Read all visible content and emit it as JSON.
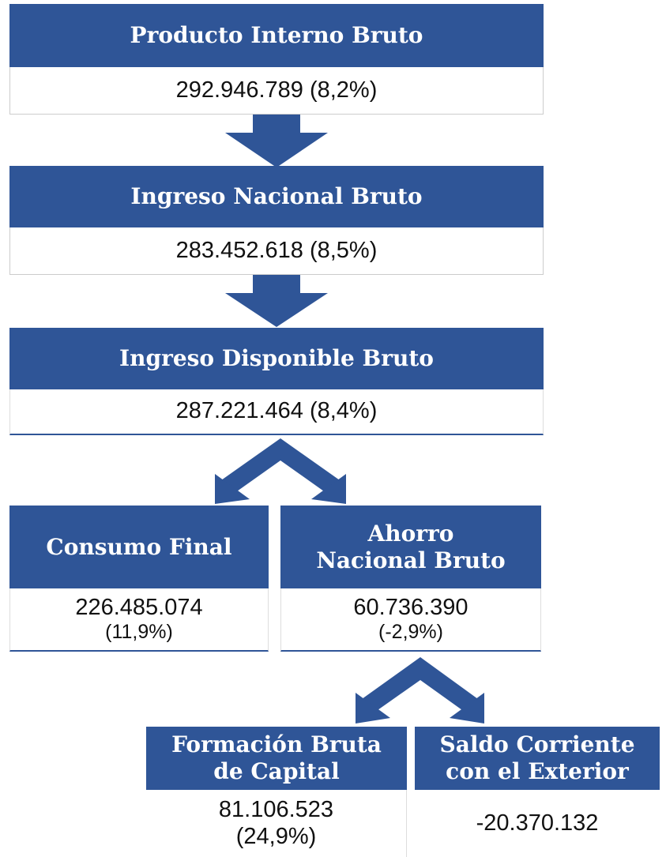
{
  "nodes": [
    {
      "title": "Producto Interno Bruto",
      "value": "292.946.789 (8,2%)"
    },
    {
      "title": "Ingreso Nacional Bruto",
      "value": "283.452.618 (8,5%)"
    },
    {
      "title": "Ingreso Disponible Bruto",
      "value": "287.221.464 (8,4%)"
    },
    {
      "title": "Consumo Final",
      "value": "226.485.074",
      "change": "(11,9%)"
    },
    {
      "title": "Ahorro Nacional Bruto",
      "value": "60.736.390",
      "change": "(-2,9%)"
    },
    {
      "title": "Formación Bruta de Capital",
      "value": "81.106.523",
      "change": "(24,9%)"
    },
    {
      "title": "Saldo Corriente con el Exterior",
      "value": "-20.370.132"
    }
  ]
}
